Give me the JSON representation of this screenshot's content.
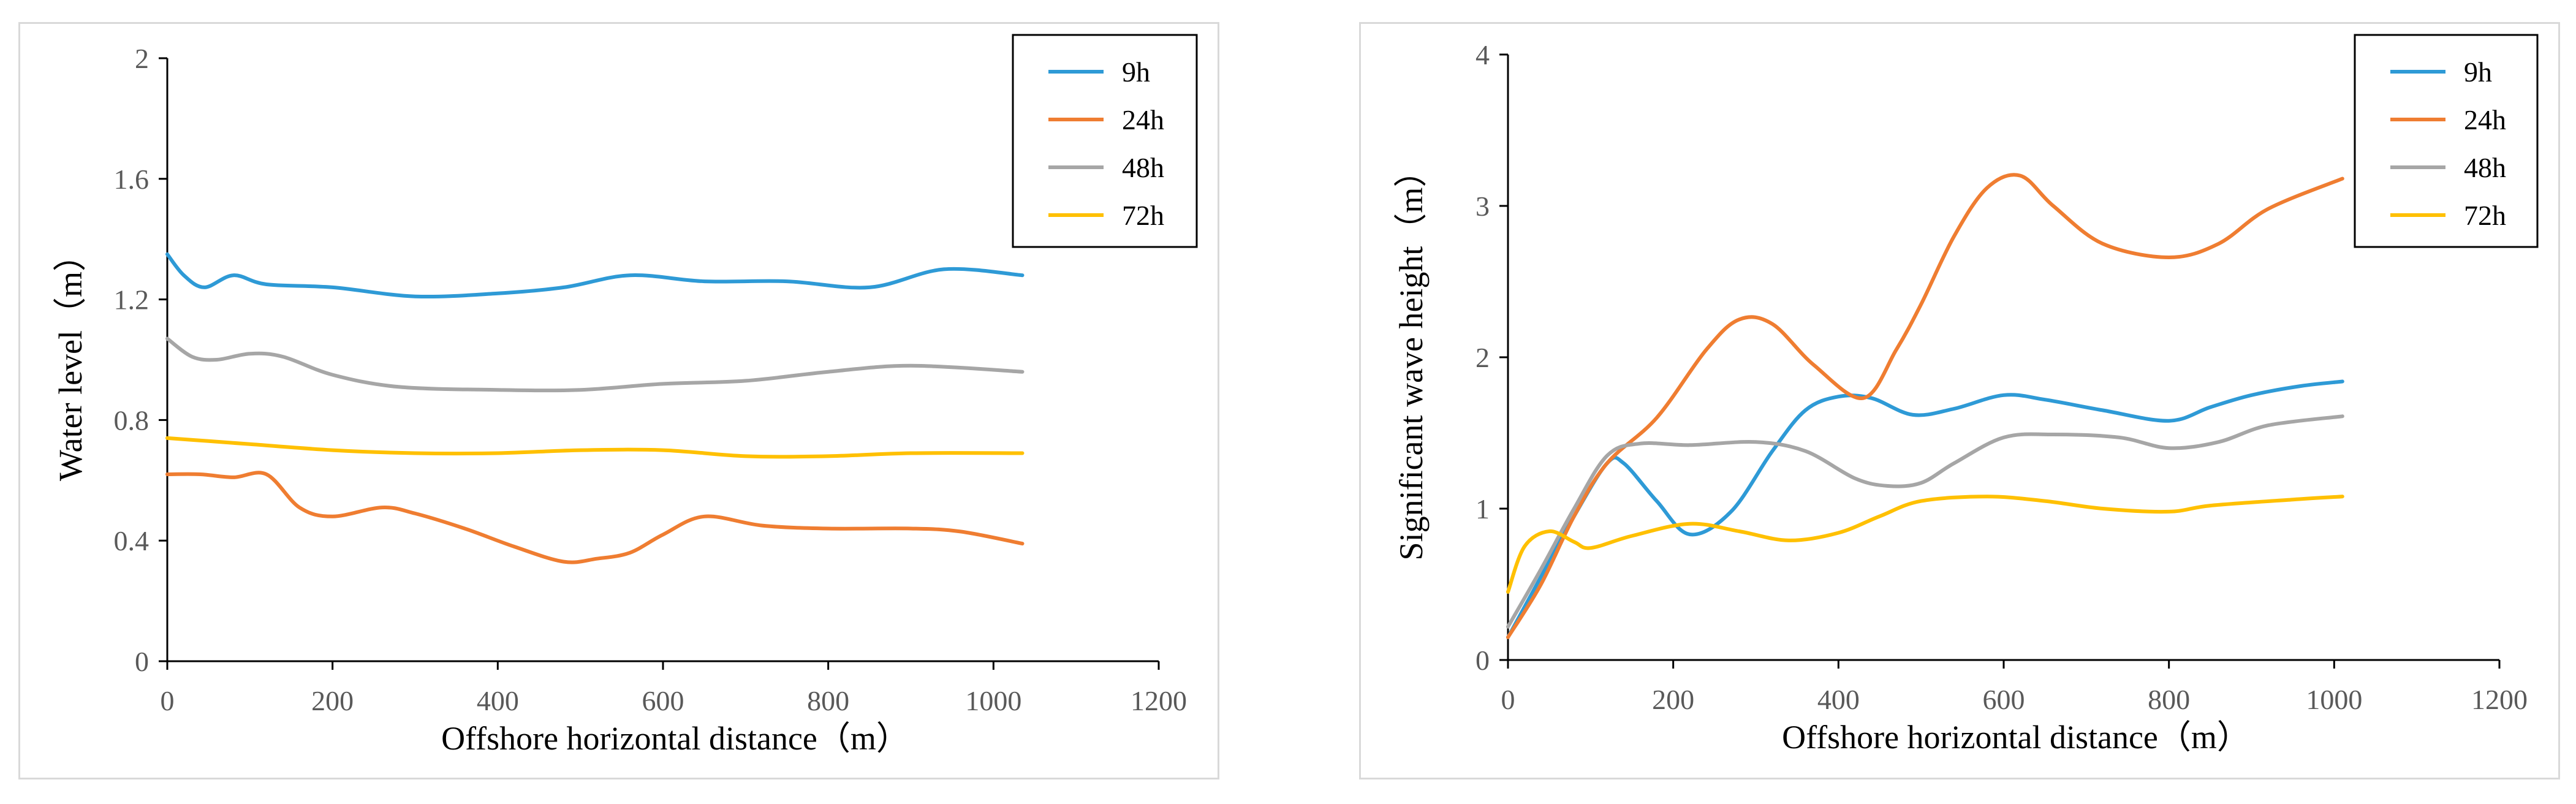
{
  "chart_data": [
    {
      "type": "line",
      "title": "",
      "xlabel": "Offshore horizontal distance（m）",
      "ylabel": "Water level（m）",
      "xlim": [
        0,
        1200
      ],
      "ylim": [
        0,
        2
      ],
      "xticks": [
        "0",
        "200",
        "400",
        "600",
        "800",
        "1000",
        "1200"
      ],
      "yticks": [
        "0",
        "0.4",
        "0.8",
        "1.2",
        "1.6",
        "2"
      ],
      "legend_position": "top-right",
      "grid": false,
      "series": [
        {
          "name": "9h",
          "color": "#2e9ad6",
          "x": [
            0,
            20,
            45,
            80,
            120,
            200,
            300,
            400,
            480,
            560,
            650,
            750,
            850,
            940,
            1035
          ],
          "y": [
            1.35,
            1.28,
            1.24,
            1.28,
            1.25,
            1.24,
            1.21,
            1.22,
            1.24,
            1.28,
            1.26,
            1.26,
            1.24,
            1.3,
            1.28
          ]
        },
        {
          "name": "24h",
          "color": "#ef7d31",
          "x": [
            0,
            40,
            80,
            120,
            160,
            200,
            260,
            300,
            360,
            420,
            480,
            520,
            560,
            600,
            650,
            720,
            800,
            900,
            960,
            1035
          ],
          "y": [
            0.62,
            0.62,
            0.61,
            0.62,
            0.51,
            0.48,
            0.51,
            0.49,
            0.44,
            0.38,
            0.33,
            0.34,
            0.36,
            0.42,
            0.48,
            0.45,
            0.44,
            0.44,
            0.43,
            0.39
          ]
        },
        {
          "name": "48h",
          "color": "#a6a6a6",
          "x": [
            0,
            30,
            60,
            100,
            140,
            200,
            280,
            400,
            500,
            600,
            700,
            800,
            900,
            1035
          ],
          "y": [
            1.07,
            1.01,
            1.0,
            1.02,
            1.01,
            0.95,
            0.91,
            0.9,
            0.9,
            0.92,
            0.93,
            0.96,
            0.98,
            0.96
          ]
        },
        {
          "name": "72h",
          "color": "#ffc000",
          "x": [
            0,
            50,
            100,
            200,
            300,
            400,
            500,
            600,
            700,
            800,
            900,
            1035
          ],
          "y": [
            0.74,
            0.73,
            0.72,
            0.7,
            0.69,
            0.69,
            0.7,
            0.7,
            0.68,
            0.68,
            0.69,
            0.69
          ]
        }
      ]
    },
    {
      "type": "line",
      "title": "",
      "xlabel": "Offshore horizontal distance（m）",
      "ylabel": "Significant wave height（m）",
      "xlim": [
        0,
        1200
      ],
      "ylim": [
        0,
        4
      ],
      "xticks": [
        "0",
        "200",
        "400",
        "600",
        "800",
        "1000",
        "1200"
      ],
      "yticks": [
        "0",
        "1",
        "2",
        "3",
        "4"
      ],
      "legend_position": "top-right",
      "grid": false,
      "series": [
        {
          "name": "9h",
          "color": "#2e9ad6",
          "x": [
            0,
            40,
            80,
            120,
            140,
            180,
            220,
            270,
            320,
            360,
            400,
            440,
            490,
            540,
            600,
            650,
            720,
            800,
            850,
            900,
            960,
            1010
          ],
          "y": [
            0.15,
            0.55,
            0.95,
            1.3,
            1.3,
            1.05,
            0.83,
            0.98,
            1.38,
            1.65,
            1.74,
            1.73,
            1.62,
            1.66,
            1.75,
            1.72,
            1.65,
            1.58,
            1.67,
            1.75,
            1.81,
            1.84
          ]
        },
        {
          "name": "24h",
          "color": "#ef7d31",
          "x": [
            0,
            40,
            80,
            120,
            180,
            240,
            280,
            320,
            370,
            430,
            470,
            500,
            540,
            580,
            620,
            660,
            720,
            800,
            860,
            920,
            1010
          ],
          "y": [
            0.15,
            0.5,
            0.95,
            1.3,
            1.6,
            2.05,
            2.25,
            2.22,
            1.95,
            1.73,
            2.05,
            2.35,
            2.8,
            3.12,
            3.2,
            3.0,
            2.75,
            2.66,
            2.75,
            2.98,
            3.18
          ]
        },
        {
          "name": "48h",
          "color": "#a6a6a6",
          "x": [
            0,
            40,
            80,
            120,
            160,
            220,
            300,
            360,
            420,
            460,
            500,
            540,
            600,
            660,
            740,
            800,
            860,
            920,
            1010
          ],
          "y": [
            0.22,
            0.6,
            1.0,
            1.35,
            1.43,
            1.42,
            1.44,
            1.38,
            1.2,
            1.15,
            1.17,
            1.3,
            1.47,
            1.49,
            1.47,
            1.4,
            1.44,
            1.55,
            1.61
          ]
        },
        {
          "name": "72h",
          "color": "#ffc000",
          "x": [
            0,
            20,
            50,
            80,
            100,
            150,
            220,
            280,
            340,
            400,
            450,
            500,
            580,
            650,
            720,
            800,
            850,
            950,
            1010
          ],
          "y": [
            0.45,
            0.75,
            0.85,
            0.78,
            0.74,
            0.82,
            0.9,
            0.85,
            0.79,
            0.84,
            0.95,
            1.05,
            1.08,
            1.05,
            1.0,
            0.98,
            1.02,
            1.06,
            1.08
          ]
        }
      ]
    }
  ]
}
